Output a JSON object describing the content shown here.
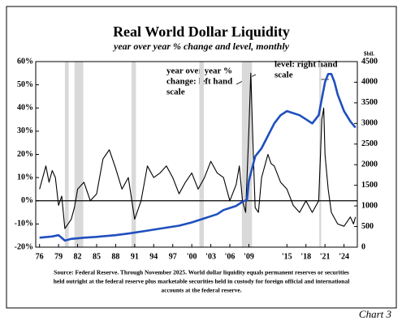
{
  "chart_data": {
    "type": "line",
    "title": "Real World Dollar Liquidity",
    "subtitle": "year over year % change and level, monthly",
    "y2_label": "$bil.",
    "annotations": [
      {
        "lines": [
          "year over year %",
          "change: left hand",
          "scale"
        ]
      },
      {
        "lines": [
          "level: right hand",
          "scale"
        ]
      }
    ],
    "source": [
      "Source: Federal Reserve. Through November 2025. World dollar liquidity equals permanent reserves or securities",
      "held outright at the federal reserve plus marketable securities held in custody for foreign official and international",
      "accounts at the federal reserve."
    ],
    "note": "Chart 3",
    "xlim": [
      1975.4,
      2026.1
    ],
    "xticks": [
      {
        "value": 1976,
        "label": "76"
      },
      {
        "value": 1979,
        "label": "79"
      },
      {
        "value": 1982,
        "label": "82"
      },
      {
        "value": 1985,
        "label": "85"
      },
      {
        "value": 1988,
        "label": "88"
      },
      {
        "value": 1991,
        "label": "91"
      },
      {
        "value": 1994,
        "label": "94"
      },
      {
        "value": 1997,
        "label": "97"
      },
      {
        "value": 2000,
        "label": "'00"
      },
      {
        "value": 2003,
        "label": "'03"
      },
      {
        "value": 2006,
        "label": "'06"
      },
      {
        "value": 2009,
        "label": "'09"
      },
      {
        "value": 2015,
        "label": "'15"
      },
      {
        "value": 2018,
        "label": "'18"
      },
      {
        "value": 2021,
        "label": "'21"
      },
      {
        "value": 2024,
        "label": "'24"
      }
    ],
    "ylim": [
      -20,
      60
    ],
    "yticks": [
      {
        "value": -20,
        "label": "-20%"
      },
      {
        "value": -10,
        "label": "-10%"
      },
      {
        "value": 0,
        "label": "0%"
      },
      {
        "value": 10,
        "label": "10%"
      },
      {
        "value": 20,
        "label": "20%"
      },
      {
        "value": 30,
        "label": "30%"
      },
      {
        "value": 40,
        "label": "40%"
      },
      {
        "value": 50,
        "label": "50%"
      },
      {
        "value": 60,
        "label": "60%"
      }
    ],
    "y2lim": [
      0,
      4500
    ],
    "y2ticks": [
      0,
      500,
      1000,
      1500,
      2000,
      2500,
      3000,
      3500,
      4000,
      4500
    ],
    "shaded_periods": [
      [
        1980.0,
        1980.6
      ],
      [
        1981.5,
        1982.9
      ],
      [
        1990.5,
        1991.2
      ],
      [
        2001.2,
        2001.9
      ],
      [
        2007.9,
        2009.5
      ],
      [
        2020.1,
        2020.4
      ]
    ],
    "shade_color": "#d9d9d9",
    "series": [
      {
        "color": "#000000",
        "axis": "y",
        "x": [
          1976,
          1976.5,
          1977,
          1977.5,
          1978,
          1978.5,
          1979,
          1979.5,
          1980,
          1980.5,
          1981,
          1981.5,
          1982,
          1983,
          1984,
          1985,
          1986,
          1987,
          1988,
          1989,
          1990,
          1991,
          1992,
          1993,
          1994,
          1995,
          1996,
          1997,
          1998,
          1999,
          2000,
          2001,
          2002,
          2003,
          2004,
          2005,
          2006,
          2007,
          2007.5,
          2008,
          2008.5,
          2009,
          2009.3,
          2009.7,
          2010,
          2010.5,
          2011,
          2012,
          2012.5,
          2013,
          2014,
          2015,
          2016,
          2017,
          2018,
          2019,
          2020,
          2020.5,
          2020.8,
          2021,
          2021.5,
          2022,
          2023,
          2024,
          2025,
          2025.5,
          2025.8
        ],
        "values": [
          5,
          10,
          15,
          8,
          13,
          10,
          -2,
          2,
          -12,
          -10,
          -8,
          -3,
          5,
          8,
          0,
          3,
          18,
          22,
          14,
          5,
          10,
          -8,
          0,
          15,
          10,
          12,
          15,
          10,
          3,
          8,
          12,
          5,
          10,
          17,
          12,
          10,
          0,
          7,
          15,
          0,
          -5,
          30,
          55,
          20,
          -3,
          -5,
          10,
          20,
          16,
          15,
          8,
          5,
          -2,
          -5,
          0,
          -5,
          0,
          35,
          40,
          20,
          5,
          -5,
          -10,
          -11,
          -7,
          -10,
          -7
        ]
      },
      {
        "color": "#1f4fbf",
        "axis": "y2",
        "x": [
          1976,
          1978,
          1979,
          1980,
          1981,
          1983,
          1985,
          1988,
          1990,
          1993,
          1995,
          1998,
          2000,
          2002,
          2004,
          2005,
          2007,
          2008,
          2008.7,
          2009,
          2009.5,
          2010,
          2011,
          2012,
          2013,
          2014,
          2015,
          2016,
          2017,
          2018,
          2019,
          2020,
          2020.5,
          2021,
          2021.5,
          2022,
          2022.5,
          2023,
          2024,
          2025,
          2025.8
        ],
        "values": [
          230,
          260,
          290,
          160,
          200,
          230,
          250,
          290,
          330,
          400,
          450,
          520,
          600,
          700,
          800,
          900,
          1000,
          1100,
          1150,
          1600,
          1900,
          2200,
          2400,
          2700,
          3000,
          3200,
          3300,
          3250,
          3200,
          3100,
          3000,
          3200,
          3600,
          4000,
          4200,
          4200,
          4000,
          3700,
          3300,
          3050,
          2900
        ]
      }
    ]
  }
}
